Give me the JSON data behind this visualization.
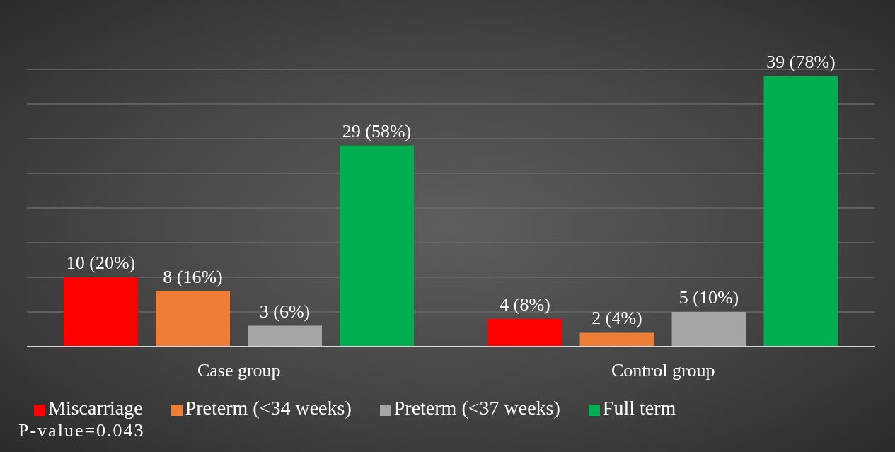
{
  "chart_data": {
    "type": "bar",
    "categories": [
      "Case group",
      "Control group"
    ],
    "series": [
      {
        "name": "Miscarriage",
        "color": "#ff0000",
        "values": [
          10,
          4
        ],
        "value_labels": [
          "10 (20%)",
          "4 (8%)"
        ]
      },
      {
        "name": "Preterm (<34 weeks)",
        "color": "#ef7d35",
        "values": [
          8,
          2
        ],
        "value_labels": [
          "8 (16%)",
          "2 (4%)"
        ]
      },
      {
        "name": "Preterm (<37 weeks)",
        "color": "#a6a6a6",
        "values": [
          3,
          5
        ],
        "value_labels": [
          "3 (6%)",
          "5 (10%)"
        ]
      },
      {
        "name": "Full term",
        "color": "#00b050",
        "values": [
          29,
          39
        ],
        "value_labels": [
          "29 (58%)",
          "39 (78%)"
        ]
      }
    ],
    "ylim": [
      0,
      40
    ],
    "yticks": [
      {
        "value": 0,
        "label": null
      },
      {
        "value": 5,
        "label": null
      },
      {
        "value": 10,
        "label": null
      },
      {
        "value": 15,
        "label": null
      },
      {
        "value": 20,
        "label": null
      },
      {
        "value": 25,
        "label": null
      },
      {
        "value": 30,
        "label": null
      },
      {
        "value": 35,
        "label": null
      },
      {
        "value": 40,
        "label": null
      }
    ],
    "tick_labels": "x",
    "grid": "y",
    "legend": "bottom",
    "annotations": [
      "P-value=0.043"
    ]
  }
}
